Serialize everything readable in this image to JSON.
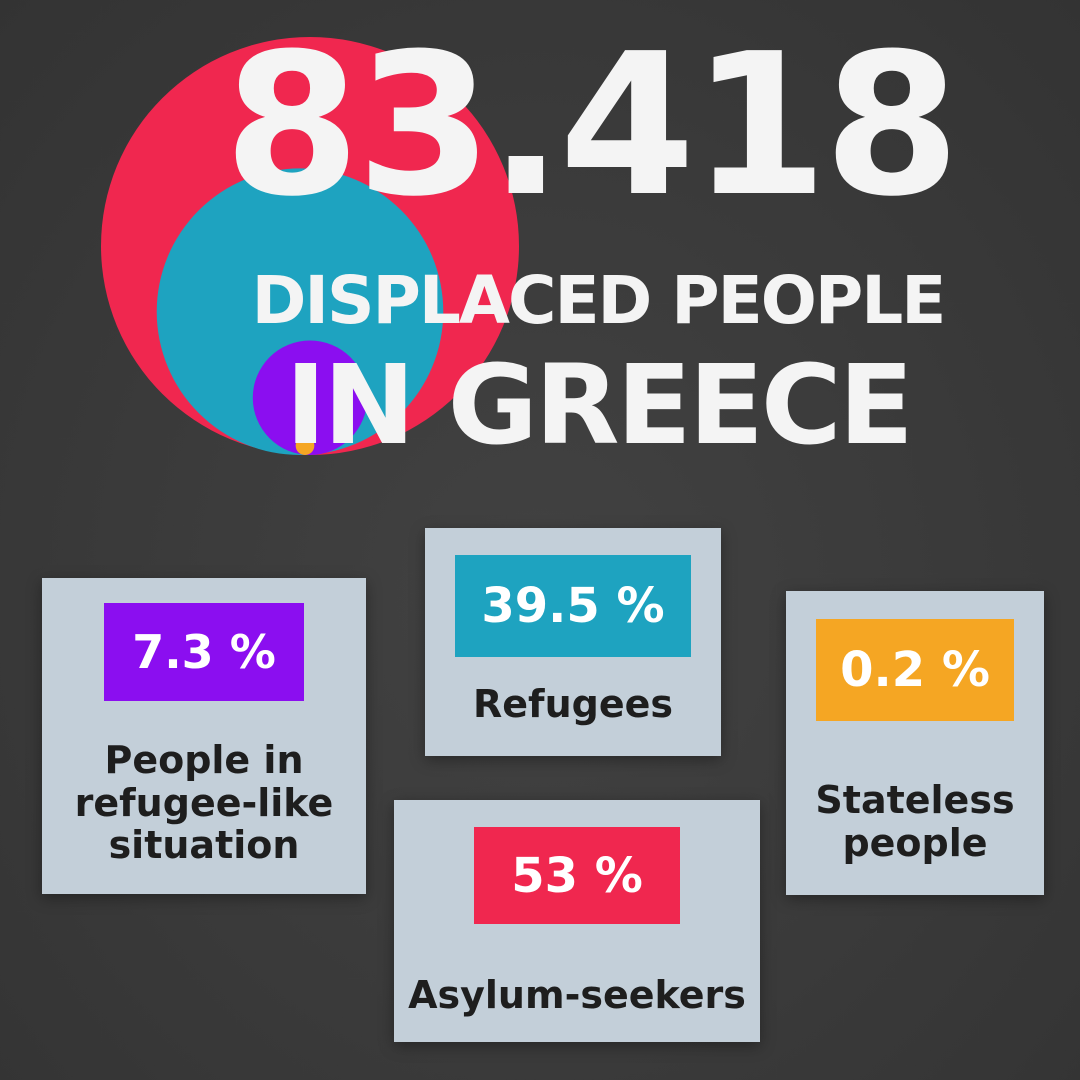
{
  "headline": {
    "total": "83.418",
    "subtitle_line1": "DISPLACED PEOPLE",
    "subtitle_line2": "IN GREECE"
  },
  "chart_data": {
    "type": "bubble",
    "title": "83.418 DISPLACED PEOPLE IN GREECE",
    "total": 83418,
    "series": [
      {
        "name": "Asylum-seekers",
        "percent": 53,
        "percent_label": "53 %",
        "color": "#f0274f"
      },
      {
        "name": "Refugees",
        "percent": 39.5,
        "percent_label": "39.5 %",
        "color": "#1ea3c0"
      },
      {
        "name": "People in refugee-like situation",
        "percent": 7.3,
        "percent_label": "7.3 %",
        "color": "#8b0ef0"
      },
      {
        "name": "Stateless people",
        "percent": 0.2,
        "percent_label": "0.2 %",
        "color": "#f5a623"
      }
    ]
  },
  "cards": {
    "people": {
      "value": "7.3 %",
      "label": "People in refugee-like situation"
    },
    "refugees": {
      "value": "39.5 %",
      "label": "Refugees"
    },
    "stateless": {
      "value": "0.2 %",
      "label": "Stateless people"
    },
    "asylum": {
      "value": "53 %",
      "label": "Asylum-seekers"
    }
  }
}
